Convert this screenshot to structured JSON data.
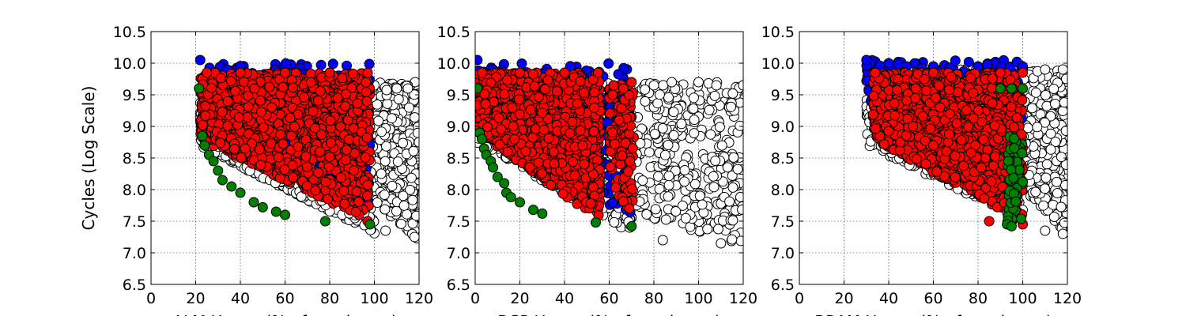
{
  "chart_data": [
    {
      "type": "scatter",
      "title": "",
      "xlabel": "ALM Usage (% of maximum)",
      "ylabel": "Cycles (Log Scale)",
      "xlim": [
        0,
        120
      ],
      "ylim": [
        6.5,
        10.5
      ],
      "xticks": [
        "0",
        "20",
        "40",
        "60",
        "80",
        "100",
        "120"
      ],
      "yticks": [
        "6.5",
        "7.0",
        "7.5",
        "8.0",
        "8.5",
        "9.0",
        "9.5",
        "10.0",
        "10.5"
      ],
      "grid": true,
      "series": [
        {
          "color": "#ffffff",
          "clouds": [
            [
              22,
              100,
              7.3,
              9.6,
              0.6,
              1500
            ],
            [
              95,
              120,
              7.2,
              9.7,
              0.3,
              700
            ]
          ],
          "points": [
            [
              100,
              9.65
            ],
            [
              110,
              9.6
            ],
            [
              115,
              9.6
            ],
            [
              105,
              7.35
            ],
            [
              118,
              7.25
            ]
          ]
        },
        {
          "color": "#0000ff",
          "clouds": [
            [
              22,
              98,
              7.6,
              10.0,
              0.6,
              350
            ]
          ],
          "points": [
            [
              22,
              10.05
            ],
            [
              34,
              9.9
            ],
            [
              85,
              9.1
            ],
            [
              95,
              9.2
            ],
            [
              97,
              8.0
            ],
            [
              80,
              8.2
            ]
          ]
        },
        {
          "color": "#ff0000",
          "clouds": [
            [
              22,
              98,
              7.5,
              9.85,
              0.55,
              1300
            ]
          ],
          "points": [
            [
              25,
              9.85
            ],
            [
              40,
              9.85
            ],
            [
              60,
              9.85
            ],
            [
              80,
              9.85
            ],
            [
              97,
              9.85
            ],
            [
              97,
              7.5
            ]
          ]
        },
        {
          "color": "#008000",
          "clouds": [],
          "points": [
            [
              21.5,
              9.6
            ],
            [
              23,
              8.85
            ],
            [
              24,
              8.7
            ],
            [
              26,
              8.55
            ],
            [
              28,
              8.45
            ],
            [
              30,
              8.3
            ],
            [
              32,
              8.15
            ],
            [
              36,
              8.05
            ],
            [
              40,
              7.95
            ],
            [
              46,
              7.8
            ],
            [
              50,
              7.72
            ],
            [
              56,
              7.65
            ],
            [
              60,
              7.6
            ],
            [
              78,
              7.5
            ],
            [
              98,
              7.45
            ]
          ]
        }
      ]
    },
    {
      "type": "scatter",
      "title": "",
      "xlabel": "DSP Usage (% of maximum)",
      "ylabel": "",
      "xlim": [
        0,
        120
      ],
      "ylim": [
        6.5,
        10.5
      ],
      "xticks": [
        "0",
        "20",
        "40",
        "60",
        "80",
        "100",
        "120"
      ],
      "yticks": [
        "6.5",
        "7.0",
        "7.5",
        "8.0",
        "8.5",
        "9.0",
        "9.5",
        "10.0",
        "10.5"
      ],
      "grid": true,
      "series": [
        {
          "color": "#ffffff",
          "clouds": [
            [
              1,
              70,
              7.3,
              9.7,
              0.6,
              1000
            ],
            [
              72,
              120,
              7.1,
              9.7,
              0.2,
              350
            ]
          ],
          "points": [
            [
              80,
              9.65
            ],
            [
              88,
              9.7
            ],
            [
              100,
              9.7
            ],
            [
              108,
              9.65
            ],
            [
              120,
              9.65
            ],
            [
              84,
              7.2
            ],
            [
              110,
              7.15
            ]
          ]
        },
        {
          "color": "#0000ff",
          "clouds": [
            [
              1,
              70,
              7.5,
              10.0,
              0.6,
              300
            ]
          ],
          "points": [
            [
              1,
              10.05
            ],
            [
              8,
              9.9
            ],
            [
              55,
              9.3
            ],
            [
              66,
              9.2
            ],
            [
              68,
              8.3
            ]
          ]
        },
        {
          "color": "#ff0000",
          "clouds": [
            [
              1,
              56,
              7.5,
              9.85,
              0.6,
              1200
            ],
            [
              60,
              71,
              7.5,
              9.7,
              0.3,
              120
            ]
          ],
          "points": [
            [
              3,
              9.85
            ],
            [
              20,
              9.85
            ],
            [
              40,
              9.85
            ],
            [
              55,
              9.85
            ],
            [
              62,
              9.65
            ],
            [
              70,
              9.7
            ]
          ]
        },
        {
          "color": "#008000",
          "clouds": [],
          "points": [
            [
              1,
              9.6
            ],
            [
              2,
              8.9
            ],
            [
              3,
              8.8
            ],
            [
              4,
              8.65
            ],
            [
              5,
              8.55
            ],
            [
              7,
              8.45
            ],
            [
              8,
              8.35
            ],
            [
              10,
              8.2
            ],
            [
              13,
              8.1
            ],
            [
              14,
              7.95
            ],
            [
              16,
              7.88
            ],
            [
              20,
              7.8
            ],
            [
              26,
              7.68
            ],
            [
              30,
              7.62
            ],
            [
              54,
              7.48
            ],
            [
              70,
              7.42
            ]
          ]
        }
      ]
    },
    {
      "type": "scatter",
      "title": "",
      "xlabel": "BRAM Usage (% of maximum)",
      "ylabel": "",
      "xlim": [
        0,
        120
      ],
      "ylim": [
        6.5,
        10.5
      ],
      "xticks": [
        "0",
        "20",
        "40",
        "60",
        "80",
        "100",
        "120"
      ],
      "yticks": [
        "6.5",
        "7.0",
        "7.5",
        "8.0",
        "8.5",
        "9.0",
        "9.5",
        "10.0",
        "10.5"
      ],
      "grid": true,
      "series": [
        {
          "color": "#ffffff",
          "clouds": [
            [
              30,
              100,
              7.5,
              9.9,
              0.5,
              1000
            ],
            [
              98,
              120,
              7.3,
              9.9,
              0.3,
              500
            ]
          ],
          "points": [
            [
              100,
              9.9
            ],
            [
              110,
              9.9
            ],
            [
              118,
              9.9
            ],
            [
              110,
              7.35
            ],
            [
              118,
              7.3
            ]
          ]
        },
        {
          "color": "#0000ff",
          "clouds": [
            [
              30,
              100,
              7.8,
              10.05,
              0.75,
              350
            ]
          ],
          "points": [
            [
              30,
              10.05
            ],
            [
              40,
              10.0
            ],
            [
              60,
              9.95
            ],
            [
              80,
              9.95
            ],
            [
              100,
              9.95
            ],
            [
              32,
              9.4
            ],
            [
              33,
              9.15
            ]
          ]
        },
        {
          "color": "#ff0000",
          "clouds": [
            [
              33,
              100,
              7.5,
              9.85,
              0.55,
              1400
            ]
          ],
          "points": [
            [
              34,
              9.85
            ],
            [
              60,
              9.85
            ],
            [
              90,
              9.85
            ],
            [
              100,
              9.85
            ],
            [
              85,
              7.5
            ],
            [
              100,
              7.45
            ]
          ]
        },
        {
          "color": "#008000",
          "clouds": [
            [
              93,
              100,
              7.4,
              8.9,
              0.0,
              60
            ]
          ],
          "points": [
            [
              90,
              9.6
            ],
            [
              95,
              9.6
            ],
            [
              100,
              9.6
            ],
            [
              93,
              7.45
            ],
            [
              95,
              7.42
            ]
          ]
        }
      ]
    }
  ]
}
